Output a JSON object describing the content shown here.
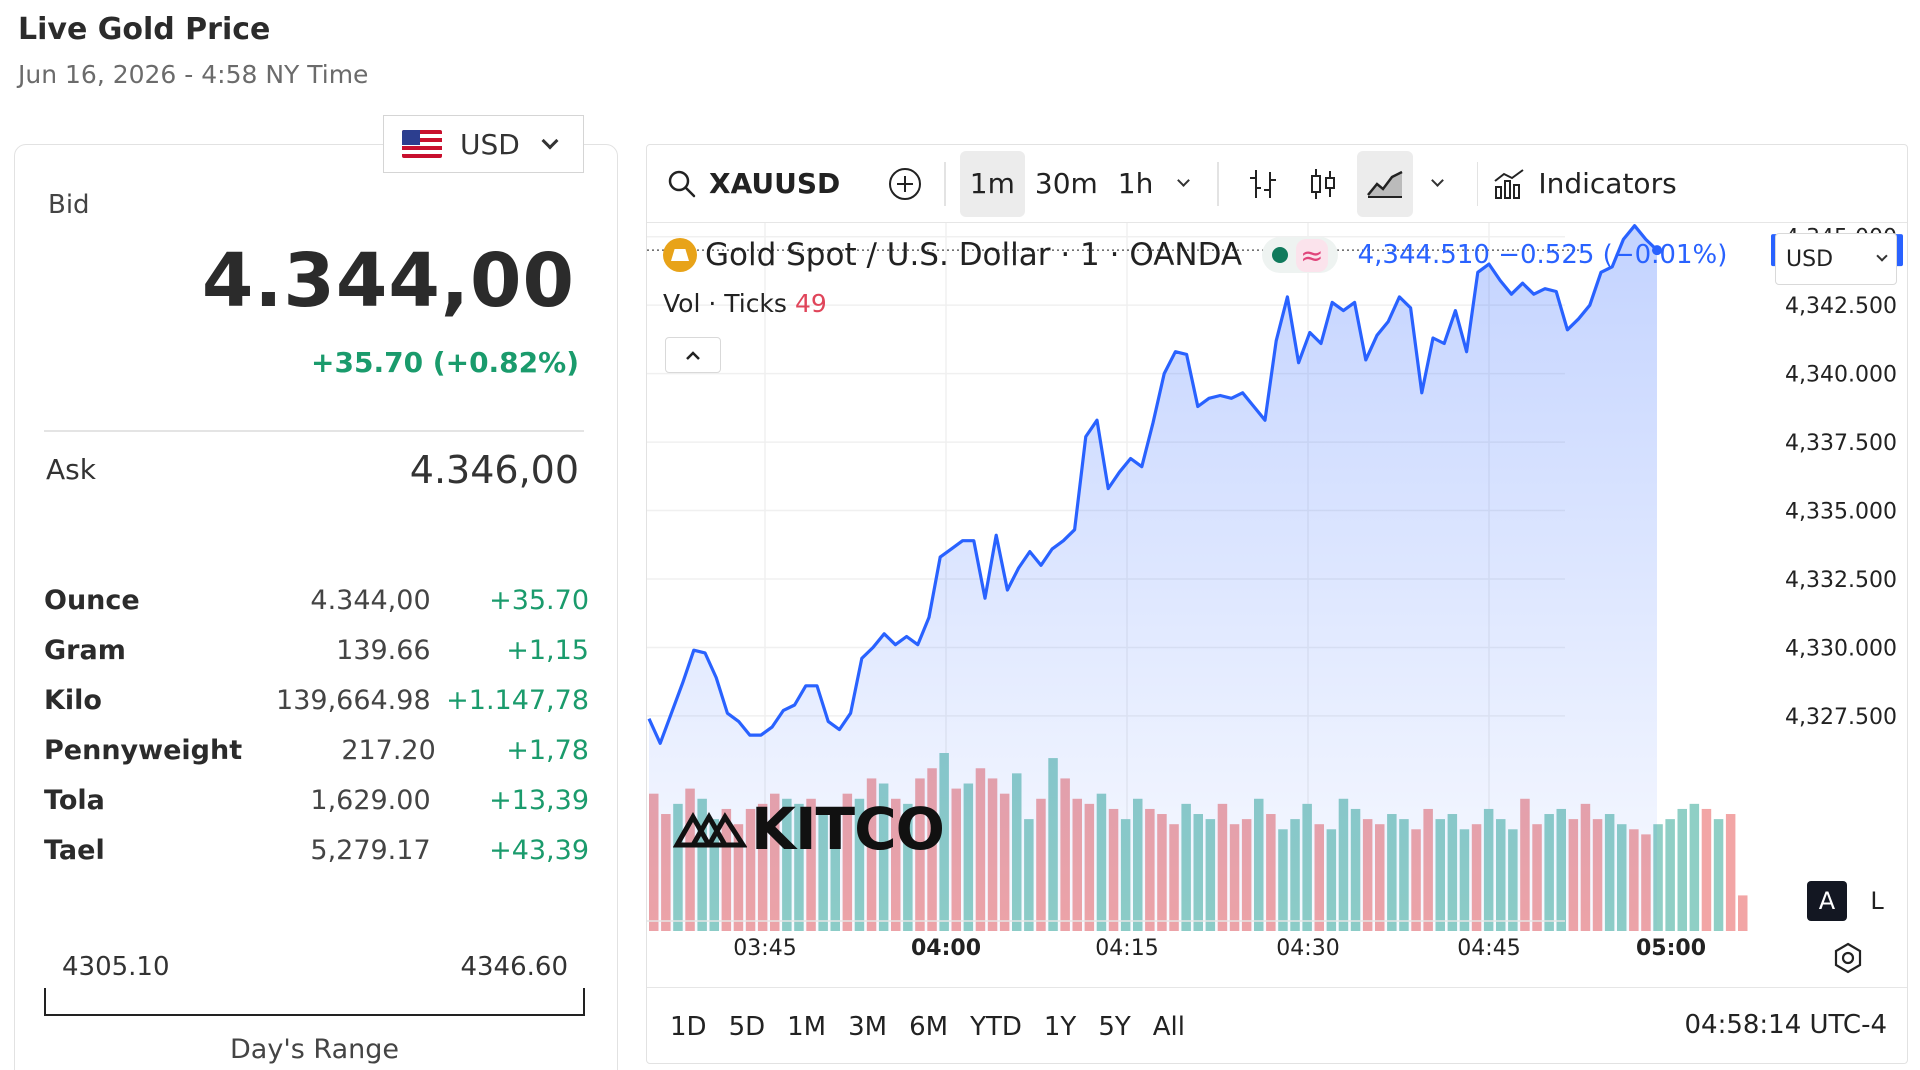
{
  "header": {
    "title": "Live Gold Price",
    "subtitle": "Jun 16, 2026 - 4:58 NY Time"
  },
  "currency_selector": {
    "value": "USD",
    "icon": "us-flag-icon"
  },
  "quote": {
    "bid_label": "Bid",
    "bid_value": "4.344,00",
    "bid_change": "+35.70 (+0.82%)",
    "ask_label": "Ask",
    "ask_value": "4.346,00"
  },
  "units": [
    {
      "name": "Ounce",
      "price": "4.344,00",
      "change": "+35.70"
    },
    {
      "name": "Gram",
      "price": "139.66",
      "change": "+1,15"
    },
    {
      "name": "Kilo",
      "price": "139,664.98",
      "change": "+1.147,78"
    },
    {
      "name": "Pennyweight",
      "price": "217.20",
      "change": "+1,78"
    },
    {
      "name": "Tola",
      "price": "1,629.00",
      "change": "+13,39"
    },
    {
      "name": "Tael",
      "price": "5,279.17",
      "change": "+43,39"
    }
  ],
  "day_range": {
    "low": "4305.10",
    "high": "4346.60",
    "label": "Day's Range"
  },
  "toolbar": {
    "symbol": "XAUUSD",
    "intervals": [
      "1m",
      "30m",
      "1h"
    ],
    "active_interval": "1m",
    "indicators_label": "Indicators"
  },
  "chart_legend": {
    "instrument": "Gold Spot / U.S. Dollar · 1 · OANDA",
    "values": "4,344.510  −0.525 (−0.01%)",
    "vol_label": "Vol · Ticks",
    "vol_value": "49",
    "currency": "USD"
  },
  "chart_data": {
    "type": "area",
    "symbol": "XAUUSD",
    "x_ticks": [
      "03:45",
      "04:00",
      "04:15",
      "04:30",
      "04:45",
      "05:00"
    ],
    "bold_x_ticks": [
      "04:00",
      "05:00"
    ],
    "y_ticks": [
      "4,345.000",
      "4,342.500",
      "4,340.000",
      "4,337.500",
      "4,335.000",
      "4,332.500",
      "4,330.000",
      "4,327.500"
    ],
    "ylim": [
      4326.0,
      4345.5
    ],
    "last_price": "4,344.510",
    "last_value": 4344.51,
    "series": [
      {
        "name": "XAUUSD",
        "color": "#2962ff",
        "values": [
          4327.4,
          4326.5,
          4327.6,
          4328.7,
          4329.9,
          4329.8,
          4328.9,
          4327.6,
          4327.3,
          4326.8,
          4326.8,
          4327.1,
          4327.7,
          4327.9,
          4328.6,
          4328.6,
          4327.3,
          4327.0,
          4327.6,
          4329.6,
          4330.0,
          4330.5,
          4330.1,
          4330.4,
          4330.1,
          4331.1,
          4333.3,
          4333.6,
          4333.9,
          4333.9,
          4331.8,
          4334.1,
          4332.1,
          4332.9,
          4333.5,
          4333.0,
          4333.6,
          4333.9,
          4334.3,
          4337.7,
          4338.3,
          4335.8,
          4336.4,
          4336.9,
          4336.6,
          4338.2,
          4340.0,
          4340.8,
          4340.7,
          4338.8,
          4339.1,
          4339.2,
          4339.1,
          4339.3,
          4338.8,
          4338.3,
          4341.2,
          4342.8,
          4340.4,
          4341.5,
          4341.1,
          4342.6,
          4342.3,
          4342.6,
          4340.5,
          4341.4,
          4341.9,
          4342.8,
          4342.4,
          4339.3,
          4341.3,
          4341.1,
          4342.3,
          4340.8,
          4343.7,
          4344.0,
          4343.4,
          4342.9,
          4343.3,
          4342.9,
          4343.1,
          4343.0,
          4341.6,
          4342.0,
          4342.5,
          4343.7,
          4343.9,
          4344.9,
          4345.4,
          4344.9,
          4344.51
        ]
      }
    ],
    "volume": [
      {
        "v": 27,
        "up": false
      },
      {
        "v": 23,
        "up": false
      },
      {
        "v": 25,
        "up": true
      },
      {
        "v": 28,
        "up": false
      },
      {
        "v": 26,
        "up": true
      },
      {
        "v": 22,
        "up": true
      },
      {
        "v": 24,
        "up": false
      },
      {
        "v": 21,
        "up": false
      },
      {
        "v": 24,
        "up": false
      },
      {
        "v": 25,
        "up": false
      },
      {
        "v": 27,
        "up": false
      },
      {
        "v": 26,
        "up": true
      },
      {
        "v": 25,
        "up": true
      },
      {
        "v": 26,
        "up": false
      },
      {
        "v": 24,
        "up": true
      },
      {
        "v": 24,
        "up": true
      },
      {
        "v": 27,
        "up": false
      },
      {
        "v": 26,
        "up": true
      },
      {
        "v": 30,
        "up": false
      },
      {
        "v": 29,
        "up": true
      },
      {
        "v": 26,
        "up": false
      },
      {
        "v": 25,
        "up": true
      },
      {
        "v": 30,
        "up": false
      },
      {
        "v": 32,
        "up": false
      },
      {
        "v": 35,
        "up": true
      },
      {
        "v": 28,
        "up": false
      },
      {
        "v": 29,
        "up": true
      },
      {
        "v": 32,
        "up": false
      },
      {
        "v": 30,
        "up": false
      },
      {
        "v": 27,
        "up": false
      },
      {
        "v": 31,
        "up": true
      },
      {
        "v": 22,
        "up": true
      },
      {
        "v": 26,
        "up": false
      },
      {
        "v": 34,
        "up": true
      },
      {
        "v": 30,
        "up": false
      },
      {
        "v": 26,
        "up": false
      },
      {
        "v": 25,
        "up": false
      },
      {
        "v": 27,
        "up": true
      },
      {
        "v": 24,
        "up": false
      },
      {
        "v": 22,
        "up": true
      },
      {
        "v": 26,
        "up": true
      },
      {
        "v": 24,
        "up": false
      },
      {
        "v": 23,
        "up": false
      },
      {
        "v": 21,
        "up": false
      },
      {
        "v": 25,
        "up": true
      },
      {
        "v": 23,
        "up": true
      },
      {
        "v": 22,
        "up": true
      },
      {
        "v": 25,
        "up": false
      },
      {
        "v": 21,
        "up": false
      },
      {
        "v": 22,
        "up": false
      },
      {
        "v": 26,
        "up": true
      },
      {
        "v": 23,
        "up": false
      },
      {
        "v": 20,
        "up": true
      },
      {
        "v": 22,
        "up": true
      },
      {
        "v": 25,
        "up": true
      },
      {
        "v": 21,
        "up": false
      },
      {
        "v": 20,
        "up": true
      },
      {
        "v": 26,
        "up": true
      },
      {
        "v": 24,
        "up": true
      },
      {
        "v": 22,
        "up": false
      },
      {
        "v": 21,
        "up": false
      },
      {
        "v": 23,
        "up": true
      },
      {
        "v": 22,
        "up": true
      },
      {
        "v": 20,
        "up": false
      },
      {
        "v": 24,
        "up": false
      },
      {
        "v": 22,
        "up": true
      },
      {
        "v": 23,
        "up": true
      },
      {
        "v": 20,
        "up": true
      },
      {
        "v": 21,
        "up": false
      },
      {
        "v": 24,
        "up": true
      },
      {
        "v": 22,
        "up": true
      },
      {
        "v": 20,
        "up": true
      },
      {
        "v": 26,
        "up": false
      },
      {
        "v": 21,
        "up": false
      },
      {
        "v": 23,
        "up": true
      },
      {
        "v": 24,
        "up": true
      },
      {
        "v": 22,
        "up": false
      },
      {
        "v": 25,
        "up": false
      },
      {
        "v": 22,
        "up": false
      },
      {
        "v": 23,
        "up": true
      },
      {
        "v": 21,
        "up": true
      },
      {
        "v": 20,
        "up": false
      },
      {
        "v": 19,
        "up": false
      },
      {
        "v": 21,
        "up": true
      },
      {
        "v": 22,
        "up": true
      },
      {
        "v": 24,
        "up": true
      },
      {
        "v": 25,
        "up": true
      },
      {
        "v": 24,
        "up": false
      },
      {
        "v": 22,
        "up": true
      },
      {
        "v": 23,
        "up": false
      },
      {
        "v": 7,
        "up": false
      }
    ],
    "colors": {
      "up": "#8fcfc5",
      "down": "#f2a5a5",
      "line": "#2962ff"
    },
    "grid": true
  },
  "bottom_bar": {
    "ranges": [
      "1D",
      "5D",
      "1M",
      "3M",
      "6M",
      "YTD",
      "1Y",
      "5Y",
      "All"
    ],
    "clock": "04:58:14 UTC-4",
    "scale_buttons": [
      "A",
      "L"
    ]
  },
  "watermark": "KITCO"
}
